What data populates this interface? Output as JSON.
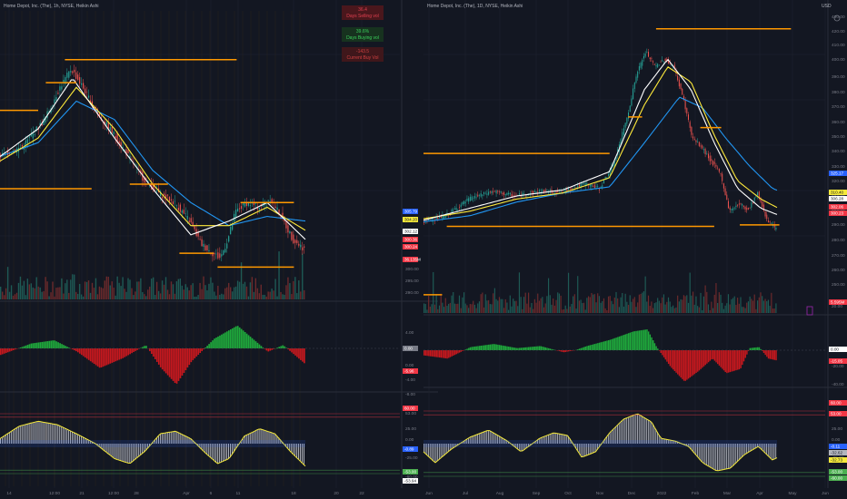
{
  "left_panel": {
    "title": "Home Depot, Inc. (The), 1h, NYSE, Heikin Ashi",
    "stats": [
      {
        "value": "36.4",
        "label": "Days Selling vol",
        "color": "#5d1a1f",
        "text_color": "#e04050"
      },
      {
        "value": "39.6%",
        "label": "Days Buying vol",
        "color": "#1a3a25",
        "text_color": "#3bd35c"
      },
      {
        "value": "-143.5",
        "label": "Current Buy Vol",
        "color": "#4a1a1e",
        "text_color": "#d04040"
      }
    ],
    "x_ticks": [
      "14",
      "12:00",
      "21",
      "12:00",
      "28",
      "Apr",
      "6",
      "11",
      "18",
      "20",
      "22"
    ],
    "price_ticks": [
      "300.00",
      "295.00",
      "290.00"
    ],
    "price_badges": [
      {
        "text": "305.79",
        "color": "#2962ff"
      },
      {
        "text": "304.20",
        "color": "#f5e93a"
      },
      {
        "text": "302.12",
        "color": "#ffffff"
      },
      {
        "text": "300.36",
        "color": "#f23645"
      },
      {
        "text": "300.24",
        "color": "#f23645"
      },
      {
        "text": "36.135M",
        "color": "#f23645"
      }
    ],
    "macd_ticks": [
      "4.00",
      "0.00",
      "-4.00",
      "-8.00",
      "-12.00"
    ],
    "macd_badges": [
      {
        "text": "0.00",
        "color": "#787b86"
      },
      {
        "text": "-5.96",
        "color": "#f23645"
      }
    ],
    "osc_ticks": [
      "60.00",
      "53.00",
      "25.00",
      "0.00",
      "-25.00",
      "-53.00",
      "-60.00"
    ],
    "osc_badges": [
      {
        "text": "60.00",
        "color": "#f23645"
      },
      {
        "text": "-0.89",
        "color": "#2962ff"
      },
      {
        "text": "-53.00",
        "color": "#4caf50"
      },
      {
        "text": "-53.94",
        "color": "#ffffff"
      }
    ]
  },
  "right_panel": {
    "title": "Home Depot, Inc. (The), 1D, NYSE, Heikin Ashi",
    "currency": "USD",
    "x_ticks": [
      "Jun",
      "Jul",
      "Aug",
      "Sep",
      "Oct",
      "Nov",
      "Dec",
      "2022",
      "Feb",
      "Mar",
      "Apr",
      "May",
      "Jun"
    ],
    "price_ticks": [
      "430.00",
      "420.00",
      "410.00",
      "400.00",
      "390.00",
      "380.00",
      "370.00",
      "360.00",
      "350.00",
      "340.00",
      "330.00",
      "320.00",
      "310.00",
      "300.00",
      "290.00",
      "280.00",
      "270.00",
      "260.00",
      "250.00"
    ],
    "price_badges": [
      {
        "text": "325.17",
        "color": "#2962ff"
      },
      {
        "text": "310.40",
        "color": "#f5e93a"
      },
      {
        "text": "306.28",
        "color": "#ffffff"
      },
      {
        "text": "302.06",
        "color": "#f23645"
      },
      {
        "text": "300.23",
        "color": "#f23645"
      },
      {
        "text": "5.595M",
        "color": "#f23645"
      }
    ],
    "macd_ticks": [
      "20.00",
      "0.00",
      "-20.00",
      "-40.00"
    ],
    "macd_badges": [
      {
        "text": "0.00",
        "color": "#ffffff"
      },
      {
        "text": "-15.05",
        "color": "#f23645"
      }
    ],
    "osc_ticks": [
      "60.00",
      "53.00",
      "25.00",
      "0.00",
      "-25.00",
      "-53.00",
      "-60.00"
    ],
    "osc_badges": [
      {
        "text": "60.00",
        "color": "#f23645"
      },
      {
        "text": "53.00",
        "color": "#f23645"
      },
      {
        "text": "-0.11",
        "color": "#2962ff"
      },
      {
        "text": "-32.62",
        "color": "#b2b5be"
      },
      {
        "text": "-32.73",
        "color": "#f5e93a"
      },
      {
        "text": "-53.00",
        "color": "#4caf50"
      },
      {
        "text": "-60.00",
        "color": "#4caf50"
      }
    ]
  },
  "colors": {
    "background": "#131722",
    "grid": "#1e222d",
    "up": "#26a69a",
    "down": "#ef5350",
    "orange_level": "#ff9800",
    "blue_ma": "#2196f3",
    "yellow_ma": "#ffeb3b",
    "white_ma": "#ffffff",
    "macd_up": "#1faa3c",
    "macd_down": "#c8181e",
    "osc_fill": "#d1d4dc"
  },
  "chart_data": [
    {
      "type": "candlestick",
      "title": "Home Depot, Inc. (The), 1h, NYSE, Heikin Ashi",
      "ylim": [
        287,
        348
      ],
      "close_path": [
        [
          0,
          318
        ],
        [
          6,
          320
        ],
        [
          12,
          326
        ],
        [
          16,
          333
        ],
        [
          19,
          337
        ],
        [
          22,
          333
        ],
        [
          26,
          327
        ],
        [
          30,
          323
        ],
        [
          34,
          318
        ],
        [
          38,
          313
        ],
        [
          42,
          310
        ],
        [
          46,
          308
        ],
        [
          50,
          304
        ],
        [
          53,
          299
        ],
        [
          56,
          297
        ],
        [
          58,
          296
        ],
        [
          60,
          300
        ],
        [
          62,
          306
        ],
        [
          65,
          308
        ],
        [
          68,
          307
        ],
        [
          71,
          309
        ],
        [
          74,
          305
        ],
        [
          77,
          300
        ],
        [
          80,
          298
        ]
      ],
      "levels": [
        {
          "price": 328,
          "x0": 0,
          "x1": 10
        },
        {
          "price": 311,
          "x0": 0,
          "x1": 24
        },
        {
          "price": 334,
          "x0": 12,
          "x1": 20
        },
        {
          "price": 339,
          "x0": 17,
          "x1": 62
        },
        {
          "price": 312,
          "x0": 34,
          "x1": 44
        },
        {
          "price": 297,
          "x0": 47,
          "x1": 56
        },
        {
          "price": 308,
          "x0": 63,
          "x1": 77
        },
        {
          "price": 294,
          "x0": 57,
          "x1": 77
        }
      ],
      "ma": [
        {
          "name": "blue",
          "points": [
            [
              0,
              318
            ],
            [
              10,
              321
            ],
            [
              20,
              330
            ],
            [
              30,
              326
            ],
            [
              40,
              315
            ],
            [
              50,
              308
            ],
            [
              60,
              303
            ],
            [
              70,
              305
            ],
            [
              80,
              304
            ]
          ]
        },
        {
          "name": "yellow",
          "points": [
            [
              0,
              317
            ],
            [
              10,
              322
            ],
            [
              20,
              333
            ],
            [
              30,
              324
            ],
            [
              40,
              312
            ],
            [
              50,
              303
            ],
            [
              60,
              303
            ],
            [
              70,
              307
            ],
            [
              80,
              302
            ]
          ]
        },
        {
          "name": "white",
          "points": [
            [
              0,
              318
            ],
            [
              10,
              324
            ],
            [
              19,
              335
            ],
            [
              30,
              322
            ],
            [
              40,
              311
            ],
            [
              50,
              301
            ],
            [
              60,
              304
            ],
            [
              70,
              308
            ],
            [
              80,
              300
            ]
          ]
        }
      ],
      "macd_path": [
        [
          0,
          -2
        ],
        [
          8,
          1.5
        ],
        [
          14,
          2.5
        ],
        [
          20,
          -1
        ],
        [
          26,
          -6
        ],
        [
          32,
          -3
        ],
        [
          38,
          1
        ],
        [
          42,
          -6
        ],
        [
          46,
          -11
        ],
        [
          50,
          -4
        ],
        [
          56,
          3
        ],
        [
          62,
          7
        ],
        [
          66,
          3
        ],
        [
          70,
          -1
        ],
        [
          74,
          1
        ],
        [
          80,
          -5
        ]
      ],
      "osc_path": [
        [
          0,
          10
        ],
        [
          5,
          35
        ],
        [
          10,
          45
        ],
        [
          15,
          38
        ],
        [
          20,
          20
        ],
        [
          25,
          0
        ],
        [
          30,
          -30
        ],
        [
          34,
          -40
        ],
        [
          38,
          -15
        ],
        [
          42,
          20
        ],
        [
          46,
          25
        ],
        [
          50,
          10
        ],
        [
          54,
          -20
        ],
        [
          57,
          -40
        ],
        [
          60,
          -30
        ],
        [
          64,
          15
        ],
        [
          68,
          30
        ],
        [
          72,
          20
        ],
        [
          76,
          -15
        ],
        [
          80,
          -45
        ]
      ]
    },
    {
      "type": "candlestick",
      "title": "Home Depot, Inc. (The), 1D, NYSE, Heikin Ashi",
      "ylim": [
        243,
        437
      ],
      "close_path": [
        [
          0,
          303
        ],
        [
          10,
          307
        ],
        [
          20,
          318
        ],
        [
          30,
          323
        ],
        [
          40,
          320
        ],
        [
          50,
          323
        ],
        [
          60,
          323
        ],
        [
          70,
          328
        ],
        [
          76,
          325
        ],
        [
          82,
          340
        ],
        [
          88,
          372
        ],
        [
          92,
          400
        ],
        [
          96,
          415
        ],
        [
          100,
          405
        ],
        [
          104,
          410
        ],
        [
          108,
          405
        ],
        [
          112,
          385
        ],
        [
          116,
          358
        ],
        [
          120,
          352
        ],
        [
          124,
          343
        ],
        [
          128,
          335
        ],
        [
          132,
          310
        ],
        [
          136,
          315
        ],
        [
          140,
          311
        ],
        [
          144,
          322
        ],
        [
          148,
          305
        ],
        [
          152,
          298
        ]
      ],
      "levels": [
        {
          "price": 348,
          "x0": 0,
          "x1": 80
        },
        {
          "price": 430,
          "x0": 100,
          "x1": 158
        },
        {
          "price": 300,
          "x0": 10,
          "x1": 125
        },
        {
          "price": 301,
          "x0": 136,
          "x1": 153
        },
        {
          "price": 372,
          "x0": 88,
          "x1": 94
        },
        {
          "price": 365,
          "x0": 119,
          "x1": 128
        },
        {
          "price": 255,
          "x0": 0,
          "x1": 8
        }
      ],
      "ma": [
        {
          "name": "blue",
          "points": [
            [
              0,
              303
            ],
            [
              20,
              307
            ],
            [
              40,
              316
            ],
            [
              60,
              322
            ],
            [
              80,
              326
            ],
            [
              95,
              355
            ],
            [
              110,
              385
            ],
            [
              120,
              378
            ],
            [
              130,
              358
            ],
            [
              140,
              340
            ],
            [
              150,
              325
            ],
            [
              155,
              322
            ]
          ]
        },
        {
          "name": "yellow",
          "points": [
            [
              0,
              305
            ],
            [
              20,
              310
            ],
            [
              40,
              318
            ],
            [
              60,
              322
            ],
            [
              80,
              332
            ],
            [
              95,
              380
            ],
            [
              105,
              405
            ],
            [
              115,
              395
            ],
            [
              125,
              360
            ],
            [
              135,
              330
            ],
            [
              145,
              318
            ],
            [
              155,
              310
            ]
          ]
        },
        {
          "name": "white",
          "points": [
            [
              0,
              304
            ],
            [
              20,
              312
            ],
            [
              40,
              320
            ],
            [
              60,
              324
            ],
            [
              80,
              336
            ],
            [
              95,
              390
            ],
            [
              105,
              410
            ],
            [
              115,
              390
            ],
            [
              125,
              355
            ],
            [
              135,
              325
            ],
            [
              145,
              312
            ],
            [
              155,
              306
            ]
          ]
        }
      ],
      "macd_path": [
        [
          0,
          -5
        ],
        [
          10,
          -8
        ],
        [
          20,
          3
        ],
        [
          30,
          6
        ],
        [
          40,
          2
        ],
        [
          50,
          4
        ],
        [
          60,
          -2
        ],
        [
          65,
          0
        ],
        [
          70,
          4
        ],
        [
          80,
          10
        ],
        [
          90,
          18
        ],
        [
          96,
          20
        ],
        [
          100,
          3
        ],
        [
          106,
          -16
        ],
        [
          112,
          -30
        ],
        [
          118,
          -20
        ],
        [
          124,
          -8
        ],
        [
          130,
          -22
        ],
        [
          136,
          -18
        ],
        [
          140,
          2
        ],
        [
          144,
          3
        ],
        [
          148,
          -8
        ],
        [
          152,
          -10
        ]
      ],
      "osc_path": [
        [
          0,
          -15
        ],
        [
          5,
          -35
        ],
        [
          12,
          -10
        ],
        [
          20,
          12
        ],
        [
          28,
          25
        ],
        [
          36,
          5
        ],
        [
          42,
          -15
        ],
        [
          50,
          10
        ],
        [
          56,
          20
        ],
        [
          62,
          15
        ],
        [
          68,
          -25
        ],
        [
          74,
          -15
        ],
        [
          80,
          20
        ],
        [
          86,
          45
        ],
        [
          92,
          55
        ],
        [
          98,
          40
        ],
        [
          102,
          10
        ],
        [
          108,
          5
        ],
        [
          114,
          -5
        ],
        [
          120,
          -35
        ],
        [
          126,
          -50
        ],
        [
          132,
          -45
        ],
        [
          138,
          -20
        ],
        [
          144,
          -5
        ],
        [
          150,
          -30
        ],
        [
          155,
          -20
        ]
      ]
    }
  ]
}
